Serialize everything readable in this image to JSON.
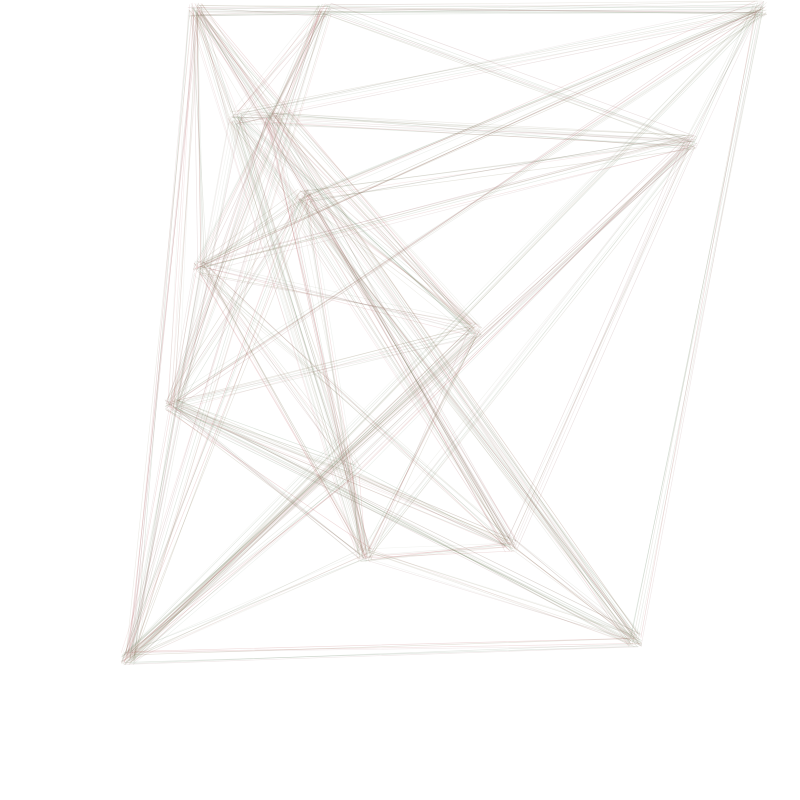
{
  "artwork": {
    "description_name": "generative-string-art",
    "background_color": "#ffffff",
    "stroke_colors": [
      "#b85c5c",
      "#8a7f5e",
      "#6f8a6a",
      "#a07070",
      "#9aa08a"
    ],
    "lines_per_edge": 7,
    "stroke_opacity": 0.18,
    "stroke_width": 0.6
  }
}
